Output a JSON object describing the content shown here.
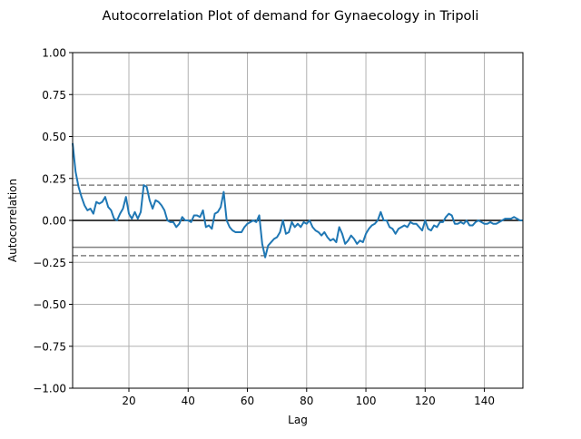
{
  "chart_data": {
    "type": "line",
    "title": "Autocorrelation Plot of demand for Gynaecology in Tripoli",
    "xlabel": "Lag",
    "ylabel": "Autocorrelation",
    "xlim": [
      1,
      153
    ],
    "ylim": [
      -1.0,
      1.0
    ],
    "xticks": [
      20,
      40,
      60,
      80,
      100,
      120,
      140
    ],
    "yticks": [
      -1.0,
      -0.75,
      -0.5,
      -0.25,
      0.0,
      0.25,
      0.5,
      0.75,
      1.0
    ],
    "xtick_labels": [
      "20",
      "40",
      "60",
      "80",
      "100",
      "120",
      "140"
    ],
    "ytick_labels": [
      "−1.00",
      "−0.75",
      "−0.50",
      "−0.25",
      "0.00",
      "0.25",
      "0.50",
      "0.75",
      "1.00"
    ],
    "grid": true,
    "zero_line": 0.0,
    "confidence_99": 0.21,
    "confidence_95": 0.16,
    "colors": {
      "series": "#1f77b4",
      "confidence": "#808080",
      "grid": "#b0b0b0",
      "zero": "#000000"
    },
    "series": [
      {
        "values": [
          0.46,
          0.29,
          0.2,
          0.14,
          0.09,
          0.06,
          0.07,
          0.04,
          0.11,
          0.1,
          0.11,
          0.14,
          0.08,
          0.06,
          0.01,
          0.0,
          0.04,
          0.07,
          0.14,
          0.04,
          0.01,
          0.05,
          0.01,
          0.05,
          0.21,
          0.2,
          0.12,
          0.07,
          0.12,
          0.11,
          0.09,
          0.06,
          0.0,
          -0.01,
          -0.01,
          -0.04,
          -0.02,
          0.02,
          0.0,
          0.0,
          -0.01,
          0.03,
          0.03,
          0.02,
          0.06,
          -0.04,
          -0.03,
          -0.05,
          0.04,
          0.05,
          0.08,
          0.17,
          0.0,
          -0.04,
          -0.06,
          -0.07,
          -0.07,
          -0.07,
          -0.04,
          -0.02,
          -0.01,
          0.0,
          -0.01,
          0.03,
          -0.14,
          -0.22,
          -0.15,
          -0.13,
          -0.11,
          -0.1,
          -0.07,
          0.0,
          -0.08,
          -0.07,
          -0.01,
          -0.04,
          -0.02,
          -0.04,
          -0.01,
          -0.02,
          0.0,
          -0.04,
          -0.06,
          -0.07,
          -0.09,
          -0.07,
          -0.1,
          -0.12,
          -0.11,
          -0.13,
          -0.04,
          -0.08,
          -0.14,
          -0.12,
          -0.09,
          -0.11,
          -0.14,
          -0.12,
          -0.13,
          -0.08,
          -0.05,
          -0.03,
          -0.02,
          0.0,
          0.05,
          0.0,
          0.0,
          -0.04,
          -0.05,
          -0.08,
          -0.05,
          -0.04,
          -0.03,
          -0.04,
          -0.01,
          -0.02,
          -0.02,
          -0.04,
          -0.06,
          0.0,
          -0.05,
          -0.06,
          -0.03,
          -0.04,
          -0.01,
          -0.01,
          0.02,
          0.04,
          0.03,
          -0.02,
          -0.02,
          -0.01,
          -0.02,
          0.0,
          -0.03,
          -0.03,
          -0.01,
          0.0,
          -0.01,
          -0.02,
          -0.02,
          -0.01,
          -0.02,
          -0.02,
          -0.01,
          0.0,
          0.01,
          0.01,
          0.01,
          0.02,
          0.01,
          0.0,
          0.0
        ]
      }
    ]
  }
}
